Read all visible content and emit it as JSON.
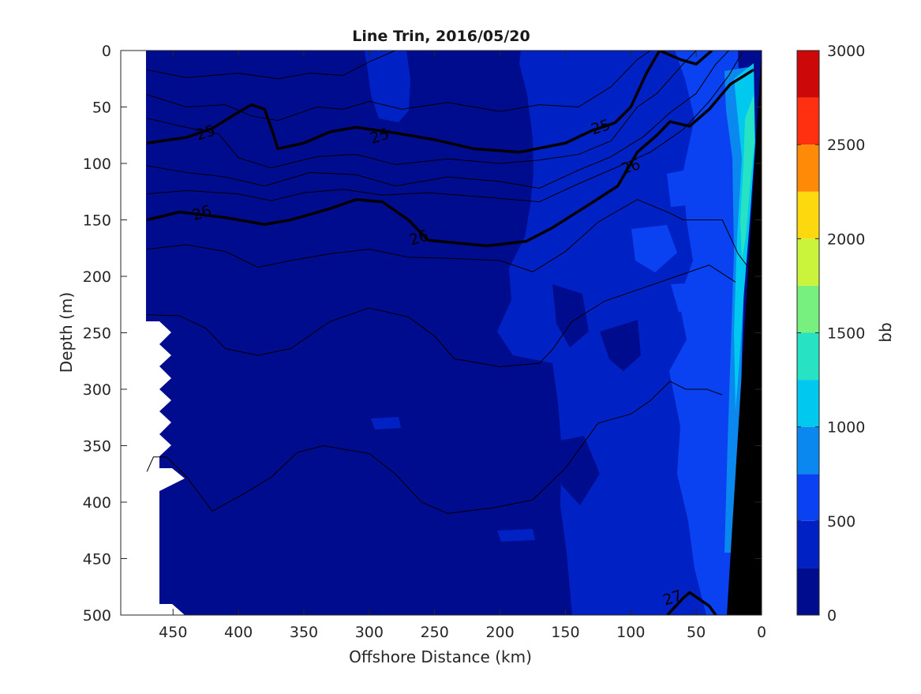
{
  "chart_data": {
    "type": "heatmap",
    "title": "Line Trin, 2016/05/20",
    "xlabel": "Offshore Distance (km)",
    "ylabel": "Depth (m)",
    "xlim": [
      490,
      0
    ],
    "ylim": [
      0,
      500
    ],
    "x_ticks": [
      450,
      400,
      350,
      300,
      250,
      200,
      150,
      100,
      50,
      0
    ],
    "y_ticks": [
      0,
      50,
      100,
      150,
      200,
      250,
      300,
      350,
      400,
      450,
      500
    ],
    "colorbar": {
      "label": "bb",
      "ticks": [
        0,
        500,
        1000,
        1500,
        2000,
        2500,
        3000
      ],
      "levels": [
        0,
        250,
        500,
        750,
        1000,
        1250,
        1500,
        1750,
        2000,
        2250,
        2500,
        2750,
        3000
      ],
      "colors": [
        "#000c8e",
        "#0022c4",
        "#0a42f2",
        "#0a88f0",
        "#00c8ee",
        "#28e2c4",
        "#78f080",
        "#caf43c",
        "#fcd80e",
        "#ff8a08",
        "#ff3010",
        "#cc0808"
      ]
    },
    "contour_labels": [
      {
        "text": "25",
        "x": 425,
        "y": 73
      },
      {
        "text": "25",
        "x": 292,
        "y": 76
      },
      {
        "text": "25",
        "x": 123,
        "y": 68
      },
      {
        "text": "26",
        "x": 428,
        "y": 144
      },
      {
        "text": "26",
        "x": 262,
        "y": 166
      },
      {
        "text": "26",
        "x": 100,
        "y": 103
      },
      {
        "text": "27",
        "x": 68,
        "y": 485
      }
    ],
    "bold_isopycnals": [
      {
        "name": "25",
        "points": [
          [
            470,
            82
          ],
          [
            440,
            77
          ],
          [
            420,
            69
          ],
          [
            402,
            56
          ],
          [
            390,
            48
          ],
          [
            380,
            52
          ],
          [
            373,
            75
          ],
          [
            370,
            87
          ],
          [
            350,
            82
          ],
          [
            330,
            72
          ],
          [
            310,
            68
          ],
          [
            280,
            73
          ],
          [
            250,
            79
          ],
          [
            220,
            87
          ],
          [
            185,
            90
          ],
          [
            150,
            82
          ],
          [
            130,
            71
          ],
          [
            112,
            64
          ],
          [
            100,
            50
          ],
          [
            88,
            20
          ],
          [
            78,
            0
          ]
        ]
      },
      {
        "name": "26",
        "points": [
          [
            470,
            150
          ],
          [
            445,
            143
          ],
          [
            410,
            148
          ],
          [
            380,
            154
          ],
          [
            360,
            150
          ],
          [
            330,
            140
          ],
          [
            310,
            132
          ],
          [
            290,
            134
          ],
          [
            270,
            150
          ],
          [
            255,
            168
          ],
          [
            210,
            173
          ],
          [
            180,
            169
          ],
          [
            160,
            157
          ],
          [
            130,
            135
          ],
          [
            110,
            120
          ],
          [
            95,
            90
          ],
          [
            80,
            75
          ],
          [
            70,
            63
          ],
          [
            55,
            67
          ],
          [
            40,
            52
          ],
          [
            24,
            30
          ],
          [
            6,
            17
          ]
        ]
      },
      {
        "name": "27",
        "points": [
          [
            72,
            500
          ],
          [
            60,
            485
          ],
          [
            55,
            480
          ],
          [
            40,
            492
          ],
          [
            35,
            500
          ]
        ]
      },
      {
        "name": "top",
        "points": [
          [
            78,
            0
          ],
          [
            62,
            8
          ],
          [
            50,
            12
          ],
          [
            38,
            0
          ]
        ]
      }
    ],
    "thin_isopycnals": [
      {
        "name": "c1",
        "points": [
          [
            470,
            17
          ],
          [
            440,
            24
          ],
          [
            400,
            20
          ],
          [
            370,
            25
          ],
          [
            345,
            20
          ],
          [
            320,
            22
          ],
          [
            300,
            10
          ],
          [
            280,
            0
          ]
        ]
      },
      {
        "name": "c2",
        "points": [
          [
            470,
            39
          ],
          [
            440,
            50
          ],
          [
            410,
            48
          ],
          [
            390,
            58
          ],
          [
            370,
            62
          ],
          [
            340,
            50
          ],
          [
            320,
            52
          ],
          [
            300,
            45
          ],
          [
            275,
            52
          ],
          [
            240,
            46
          ],
          [
            200,
            54
          ],
          [
            170,
            48
          ],
          [
            140,
            50
          ],
          [
            115,
            32
          ],
          [
            95,
            8
          ],
          [
            85,
            0
          ]
        ]
      },
      {
        "name": "c3",
        "points": [
          [
            470,
            60
          ],
          [
            440,
            68
          ],
          [
            415,
            74
          ],
          [
            400,
            95
          ],
          [
            375,
            104
          ],
          [
            340,
            94
          ],
          [
            310,
            92
          ],
          [
            280,
            101
          ],
          [
            240,
            96
          ],
          [
            200,
            100
          ],
          [
            170,
            97
          ],
          [
            140,
            92
          ],
          [
            115,
            80
          ],
          [
            95,
            50
          ],
          [
            80,
            38
          ],
          [
            60,
            12
          ],
          [
            50,
            0
          ]
        ]
      },
      {
        "name": "c4",
        "points": [
          [
            470,
            102
          ],
          [
            440,
            108
          ],
          [
            410,
            112
          ],
          [
            380,
            120
          ],
          [
            345,
            108
          ],
          [
            310,
            110
          ],
          [
            280,
            120
          ],
          [
            240,
            112
          ],
          [
            200,
            116
          ],
          [
            170,
            122
          ],
          [
            140,
            106
          ],
          [
            115,
            94
          ],
          [
            90,
            76
          ],
          [
            70,
            55
          ],
          [
            50,
            38
          ],
          [
            35,
            12
          ],
          [
            25,
            0
          ]
        ]
      },
      {
        "name": "c5",
        "points": [
          [
            470,
            127
          ],
          [
            440,
            124
          ],
          [
            400,
            127
          ],
          [
            375,
            133
          ],
          [
            350,
            126
          ],
          [
            320,
            123
          ],
          [
            290,
            128
          ],
          [
            255,
            126
          ],
          [
            210,
            130
          ],
          [
            170,
            134
          ],
          [
            140,
            118
          ],
          [
            110,
            103
          ],
          [
            85,
            90
          ],
          [
            60,
            70
          ],
          [
            40,
            45
          ],
          [
            25,
            22
          ],
          [
            15,
            2
          ]
        ]
      },
      {
        "name": "c6",
        "points": [
          [
            470,
            176
          ],
          [
            440,
            172
          ],
          [
            410,
            178
          ],
          [
            385,
            192
          ],
          [
            360,
            186
          ],
          [
            330,
            180
          ],
          [
            300,
            176
          ],
          [
            270,
            183
          ],
          [
            240,
            184
          ],
          [
            200,
            186
          ],
          [
            175,
            196
          ],
          [
            150,
            178
          ],
          [
            125,
            152
          ],
          [
            95,
            132
          ],
          [
            70,
            144
          ],
          [
            60,
            150
          ],
          [
            30,
            150
          ],
          [
            18,
            180
          ],
          [
            5,
            200
          ]
        ]
      },
      {
        "name": "c7",
        "points": [
          [
            470,
            234
          ],
          [
            445,
            235
          ],
          [
            425,
            246
          ],
          [
            410,
            264
          ],
          [
            385,
            270
          ],
          [
            360,
            264
          ],
          [
            330,
            240
          ],
          [
            300,
            228
          ],
          [
            270,
            236
          ],
          [
            250,
            253
          ],
          [
            235,
            273
          ],
          [
            200,
            280
          ],
          [
            170,
            277
          ],
          [
            160,
            265
          ],
          [
            145,
            240
          ],
          [
            120,
            222
          ],
          [
            90,
            210
          ],
          [
            65,
            200
          ],
          [
            40,
            190
          ],
          [
            20,
            205
          ]
        ]
      },
      {
        "name": "c8",
        "points": [
          [
            470,
            373
          ],
          [
            465,
            360
          ],
          [
            455,
            360
          ],
          [
            440,
            377
          ],
          [
            420,
            408
          ],
          [
            395,
            392
          ],
          [
            375,
            378
          ],
          [
            355,
            356
          ],
          [
            335,
            350
          ],
          [
            300,
            357
          ],
          [
            280,
            375
          ],
          [
            260,
            400
          ],
          [
            240,
            410
          ],
          [
            205,
            405
          ],
          [
            175,
            398
          ],
          [
            150,
            370
          ],
          [
            125,
            330
          ],
          [
            100,
            322
          ],
          [
            85,
            310
          ],
          [
            70,
            293
          ],
          [
            58,
            300
          ],
          [
            42,
            300
          ],
          [
            30,
            305
          ]
        ]
      }
    ]
  }
}
